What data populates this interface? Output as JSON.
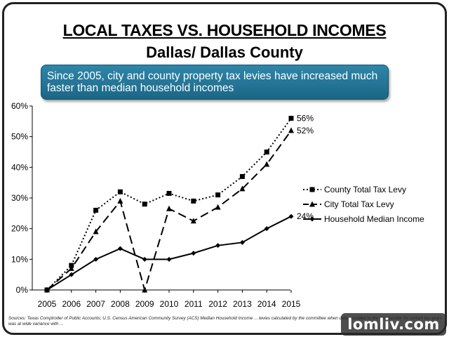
{
  "slide": {
    "title": "LOCAL TAXES VS. HOUSEHOLD INCOMES",
    "subtitle": "Dallas/ Dallas County",
    "callout": "Since 2005, city and county property tax levies have increased much faster than median household incomes",
    "footer": "Sources: Texas Comptroller of Public Accounts; U.S. Census American Community Survey (ACS) Median Household Income ... levies calculated by the committee when data provided to the Comptroller for certain tax years was at wide variance with ...",
    "watermark": "lomliv.com"
  },
  "chart_data": {
    "type": "line",
    "title": "",
    "xlabel": "",
    "ylabel": "",
    "x": [
      2005,
      2006,
      2007,
      2008,
      2009,
      2010,
      2011,
      2012,
      2013,
      2014,
      2015
    ],
    "x_tick_labels": [
      "2005",
      "2006",
      "2007",
      "2008",
      "2009",
      "2010",
      "2011",
      "2012",
      "2013",
      "2014",
      "2015"
    ],
    "y_tick_labels": [
      "0%",
      "10%",
      "20%",
      "30%",
      "40%",
      "50%",
      "60%"
    ],
    "ylim": [
      0,
      60
    ],
    "grid": false,
    "legend_position": "right",
    "series": [
      {
        "name": "County Total Tax Levy",
        "values": [
          0,
          8,
          26,
          32,
          28,
          31.5,
          29,
          31,
          37,
          45,
          56
        ],
        "end_label": "56%",
        "style": "dotted",
        "marker": "square"
      },
      {
        "name": "City Total Tax Levy",
        "values": [
          0,
          7,
          19,
          29,
          0,
          26.5,
          22.5,
          27,
          33,
          41,
          52
        ],
        "end_label": "52%",
        "style": "dashed",
        "marker": "triangle"
      },
      {
        "name": "Household Median Income",
        "values": [
          0,
          5,
          10,
          13.5,
          10,
          10,
          12,
          14.5,
          15.5,
          20,
          24
        ],
        "end_label": "24%",
        "style": "solid",
        "marker": "diamond"
      }
    ]
  }
}
